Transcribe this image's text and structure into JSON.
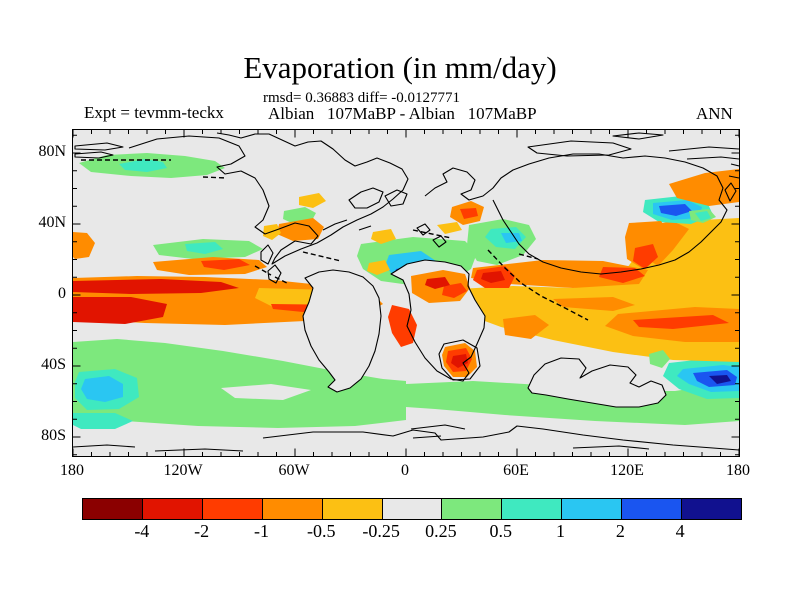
{
  "header": {
    "title": "Evaporation (in mm/day)",
    "stats_line": "rmsd= 0.36883 diff= -0.0127771",
    "expt_label": "Expt = tevmm-teckx",
    "run_label": "Albian   107MaBP - Albian   107MaBP",
    "season_label": "ANN"
  },
  "chart_data": {
    "type": "heatmap",
    "title": "Evaporation (in mm/day)",
    "subtitle": "rmsd= 0.36883 diff= -0.0127771",
    "rmsd": 0.36883,
    "diff": -0.0127771,
    "experiment": "tevmm-teckx",
    "comparison": "Albian  107MaBP - Albian  107MaBP",
    "season": "ANN",
    "projection": "equirectangular",
    "lon_range": [
      -180,
      180
    ],
    "lat_range": [
      -90,
      90
    ],
    "lon_tick_labels": [
      "180",
      "120W",
      "60W",
      "0",
      "60E",
      "120E",
      "180"
    ],
    "lon_tick_x": [
      0,
      111,
      222,
      333,
      444,
      555,
      666
    ],
    "lat_tick_labels": [
      "80N",
      "40N",
      "0",
      "40S",
      "80S"
    ],
    "lat_tick_y": [
      23,
      94,
      165,
      236,
      307
    ],
    "colorbar": {
      "units": "mm/day",
      "levels": [
        -4,
        -2,
        -1,
        -0.5,
        -0.25,
        0.25,
        0.5,
        1,
        2,
        4
      ],
      "labels": [
        "-4",
        "-2",
        "-1",
        "-0.5",
        "-0.25",
        "0.25",
        "0.5",
        "1",
        "2",
        "4"
      ],
      "colors": [
        "#8b0000",
        "#e11400",
        "#ff3c00",
        "#ff8c00",
        "#fcc013",
        "#e8e8e8",
        "#7de87d",
        "#3fe9c0",
        "#2ac6f2",
        "#1a55f0",
        "#11118f"
      ]
    },
    "map": {
      "background": "#e8e8e8",
      "palette": {
        "bg": "#e8e8e8",
        "g": "#7de87d",
        "t": "#3fe9c0",
        "c": "#2ac6f2",
        "b": "#1a55f0",
        "n": "#11118f",
        "a": "#fcc013",
        "o": "#ff8c00",
        "r": "#ff3c00",
        "R": "#e11400"
      },
      "regions": [
        [
          "g",
          "M6,33 L34,25 L74,23 L112,26 L142,31 L152,38 L134,45 L98,48 L58,46 L18,42 Z"
        ],
        [
          "t",
          "M46,34 L72,29 L90,32 L94,38 L74,42 L52,40 Z"
        ],
        [
          "g",
          "M0,212 L44,209 L92,213 L150,221 L210,231 L262,241 L310,249 L333,251 L333,290 L282,296 L205,298 L125,296 L52,291 L0,287 Z"
        ],
        [
          "bg",
          "M148,258 L198,254 L238,260 L210,270 L162,268 Z"
        ],
        [
          "g",
          "M333,254 L400,251 L468,255 L540,261 L602,261 L642,255 L666,249 L666,291 L612,295 L522,291 L432,285 L362,279 L333,277 Z"
        ],
        [
          "t",
          "M596,233 L640,228 L666,228 L666,268 L634,269 L606,259 L590,246 Z"
        ],
        [
          "c",
          "M610,239 L650,235 L666,237 L666,261 L638,262 L616,254 L604,246 Z"
        ],
        [
          "b",
          "M620,243 L654,240 L664,247 L662,255 L636,257 L624,251 Z"
        ],
        [
          "n",
          "M636,246 L654,245 L658,251 L644,254 Z"
        ],
        [
          "t",
          "M6,242 L42,239 L64,248 L66,267 L46,279 L14,280 L2,268 L2,252 Z"
        ],
        [
          "c",
          "M12,249 L36,246 L50,254 L50,267 L32,272 L14,269 L8,259 Z"
        ],
        [
          "t",
          "M0,283 L42,283 L60,291 L42,299 L8,299 L0,295 Z"
        ],
        [
          "g",
          "M80,115 L130,109 L176,111 L190,119 L172,127 L120,129 L86,125 Z"
        ],
        [
          "t",
          "M112,114 L142,112 L150,119 L132,124 L114,121 Z"
        ],
        [
          "o",
          "M80,132 L140,127 L186,130 L194,137 L172,144 L116,145 L84,140 Z"
        ],
        [
          "r",
          "M128,131 L166,129 L177,135 L151,140 L131,137 Z"
        ],
        [
          "o",
          "M0,148 L64,146 L132,147 L200,150 L258,156 L300,164 L310,174 L292,184 L232,191 L152,195 L72,193 L0,189 Z"
        ],
        [
          "R",
          "M0,151 L88,149 L148,152 L166,158 L128,163 L58,164 L0,162 Z"
        ],
        [
          "R",
          "M0,167 L58,167 L94,174 L90,187 L52,194 L0,192 Z"
        ],
        [
          "a",
          "M186,158 L256,160 L298,168 L294,179 L248,183 L200,177 L182,168 Z"
        ],
        [
          "r",
          "M198,174 L278,175 L284,180 L230,182 L200,179 Z"
        ],
        [
          "a",
          "M366,160 L440,156 L500,158 L545,150 L560,130 L572,108 L590,95 L630,90 L666,88 L666,232 L600,230 L540,222 L480,210 L428,197 L390,183 L364,173 Z"
        ],
        [
          "o",
          "M545,184 L622,177 L666,179 L666,212 L612,212 L560,206 L532,196 Z"
        ],
        [
          "r",
          "M560,190 L640,185 L656,193 L600,199 L566,197 Z"
        ],
        [
          "o",
          "M574,96 L600,91 L616,99 L600,120 L585,136 L570,126 L568,108 Z"
        ],
        [
          "o",
          "M430,189 L462,185 L476,195 L458,209 L432,205 Z"
        ],
        [
          "o",
          "M480,169 L540,167 L562,175 L540,181 L490,177 Z"
        ],
        [
          "o",
          "M400,138 L470,130 L530,131 L575,140 L566,154 L500,158 L436,154 L398,148 Z"
        ],
        [
          "r",
          "M404,140 L432,136 L442,146 L436,158 L412,158 L400,150 Z"
        ],
        [
          "R",
          "M410,143 L428,141 L432,150 L418,153 L408,149 Z"
        ],
        [
          "r",
          "M530,137 L562,138 L572,146 L550,153 L526,147 Z"
        ],
        [
          "g",
          "M288,114 L340,107 L392,111 L404,123 L398,139 L380,151 L344,156 L308,151 L290,139 L284,126 Z"
        ],
        [
          "c",
          "M316,125 L348,121 L363,131 L358,145 L338,152 L321,146 L312,136 Z"
        ],
        [
          "b",
          "M323,139 L338,136 L343,145 L330,150 L321,146 Z"
        ],
        [
          "a",
          "M296,133 L312,130 L317,140 L304,145 L294,141 Z"
        ],
        [
          "a",
          "M300,102 L318,99 L323,109 L308,114 L298,109 Z"
        ],
        [
          "a",
          "M364,95 L384,92 L389,100 L372,104 Z"
        ],
        [
          "g",
          "M396,95 L430,89 L456,95 L463,109 L450,125 L424,135 L404,131 L394,115 Z"
        ],
        [
          "t",
          "M418,99 L443,97 L453,107 L442,119 L423,117 L412,107 Z"
        ],
        [
          "c",
          "M428,103 L446,103 L449,111 L433,113 Z"
        ],
        [
          "t",
          "M572,70 L608,66 L634,72 L640,85 L618,94 L586,92 L570,82 Z"
        ],
        [
          "c",
          "M580,73 L614,70 L629,77 L626,88 L599,90 L580,84 Z"
        ],
        [
          "b",
          "M586,76 L612,74 L619,81 L603,86 L588,83 Z"
        ],
        [
          "o",
          "M556,93 L588,91 L596,103 L586,125 L570,139 L554,129 L552,107 Z"
        ],
        [
          "r",
          "M562,118 L580,114 L585,127 L572,139 L560,131 Z"
        ],
        [
          "o",
          "M596,54 L632,43 L666,39 L666,72 L636,76 L604,68 Z"
        ],
        [
          "g",
          "M616,81 L636,79 L643,87 L630,93 L618,90 Z"
        ],
        [
          "t",
          "M622,83 L634,81 L638,88 L628,91 Z"
        ],
        [
          "g",
          "M211,81 L232,77 L243,83 L238,92 L221,94 L210,89 Z"
        ],
        [
          "t",
          "M225,95 L240,92 L246,100 L234,105 L225,101 Z"
        ],
        [
          "o",
          "M206,94 L240,88 L251,97 L245,109 L220,111 L204,104 Z"
        ],
        [
          "a",
          "M191,96 L204,94 L208,103 L199,110 L190,106 Z"
        ],
        [
          "o",
          "M0,102 L14,103 L22,113 L16,127 L2,129 L0,127 Z"
        ],
        [
          "a",
          "M226,67 L246,63 L253,71 L240,78 L226,75 Z"
        ],
        [
          "o",
          "M379,77 L398,71 L411,77 L407,91 L390,95 L377,87 Z"
        ],
        [
          "r",
          "M387,79 L403,78 L405,86 L391,89 Z"
        ],
        [
          "bg",
          "M232,148 L240,158 L236,172 L230,186 L232,200 L238,216 L246,230 L256,242 L262,250 L255,257 L264,262 L277,258 L288,249 L296,236 L302,221 L306,204 L308,186 L306,168 L300,156 L290,147 L276,142 L260,140 L246,142 Z"
        ],
        [
          "bg",
          "M318,144 L330,150 L336,164 L338,180 L334,196 L342,212 L352,228 L364,241 L378,249 L390,251 L396,243 L390,233 L398,227 L404,214 L411,198 L412,186 L402,170 L395,156 L396,144 L388,136 L372,132 L352,130 L334,134 Z"
        ],
        [
          "bg",
          "M455,258 L461,245 L472,234 L488,228 L506,229 L513,238 L507,248 L519,241 L537,235 L555,237 L563,245 L557,253 L566,257 L578,251 L589,255 L593,265 L585,273 L566,277 L543,277 L519,273 L495,269 L473,265 L459,263 Z"
        ],
        [
          "o",
          "M338,146 L370,140 L392,144 L397,158 L387,171 L356,173 L339,163 Z"
        ],
        [
          "r",
          "M371,156 L388,153 L394,161 L381,168 L369,165 Z"
        ],
        [
          "R",
          "M354,149 L372,147 L377,155 L362,159 L352,155 Z"
        ],
        [
          "r",
          "M319,175 L336,179 L344,195 L340,213 L328,217 L319,203 L315,187 Z"
        ],
        [
          "g",
          "M576,224 L590,220 L597,229 L589,238 L577,234 Z"
        ],
        [
          "bg",
          "M371,214 L390,210 L404,218 L407,236 L397,249 L380,250 L369,238 L366,224 Z"
        ],
        [
          "o",
          "M372,217 L392,213 L402,221 L404,237 L394,247 L380,247 L371,236 L369,225 Z"
        ],
        [
          "r",
          "M375,221 L393,218 L399,229 L393,241 L380,242 L373,232 Z"
        ],
        [
          "R",
          "M380,226 L393,224 L395,233 L385,238 L378,233 Z"
        ]
      ],
      "coastlines": [
        "M56,18 L84,9 L116,6 L146,8 L166,16 L172,26 L158,34 L144,37 L152,44 L168,41 L182,48 L190,60 L196,76 L190,90 L182,97 L192,104 L206,99 L222,93 L236,96 L245,106 L238,114 L222,111 L208,120 L202,128 L199,134 L212,126 L228,119 L244,113 L258,105 L270,97 L284,90 L298,84 L310,77 L320,69 L330,60 L335,49 L329,39 L317,33 L304,28 L294,32 L282,36 L272,30 L260,19 L248,11 L235,12 L222,16 L209,10 L196,4 L182,4 L168,8 L156,5 L144,3",
        "M2,16 L34,13 L50,17 L32,20 L2,19 Z",
        "M2,24 L28,22 L40,25 L26,28 L2,27 Z",
        "M276,70 L288,62 L300,58 L310,62 L306,72 L294,78 L282,78 Z",
        "M312,66 L324,60 L334,64 L330,74 L318,76 Z",
        "M352,66 L362,58 L374,52 L370,44 L380,38 L394,42 L402,50 L398,60 L388,64 L396,70 L410,66 L420,58 L428,48 L440,40 L456,34 L476,28 L500,24 L526,24 L550,28 L572,26 L592,28 L612,32 L630,38 L644,46 L650,58 L646,70 L654,80 L648,92 L638,102 L628,112 L616,122 L602,130 L586,135 L568,139 L548,142 L528,144 L508,142 L488,138 L470,132 L456,124 L446,114 L438,102 L430,90 L424,78 L420,70",
        "M455,17 L498,11 L540,13 L558,19 L536,25 L494,26 L464,23 Z",
        "M540,6 L566,3 L590,5 L566,9 Z",
        "M596,21 L636,17 L666,19",
        "M614,29 L648,27 L666,29",
        "M232,148 L240,158 L236,172 L230,186 L232,200 L238,216 L246,230 L256,242 L262,250 L255,257 L264,262 L277,258 L288,249 L296,236 L302,221 L306,204 L308,186 L306,168 L300,156 L290,147 L276,142 L260,140 L246,142 Z",
        "M318,144 L330,150 L336,164 L338,180 L334,196 L342,212 L352,228 L364,241 L378,249 L390,251 L396,243 L390,233 L398,227 L404,214 L411,198 L412,186 L402,170 L395,156 L396,144 L388,136 L372,132 L352,130 L334,134 Z",
        "M188,122 L195,115 L200,123 L195,134 L188,130 Z",
        "M195,141 L202,135 L208,143 L203,153 L196,149 Z",
        "M455,258 L461,245 L472,234 L488,228 L506,229 L513,238 L507,248 L519,241 L537,235 L555,237 L563,245 L557,253 L566,257 L578,251 L589,255 L593,265 L585,273 L566,277 L543,277 L519,273 L495,269 L473,265 L459,263 Z",
        "M371,214 L390,210 L404,218 L407,236 L397,249 L380,250 L369,238 L366,224 Z",
        "M652,60 L658,53 L663,61 L657,71 Z",
        "M658,34 L666,36",
        "M656,46 L666,48",
        "M190,308 L240,302 L290,302 L320,306 L340,300 L362,303 L368,310 L410,307 L436,302 L444,296 L470,299 L510,305 L550,310 L600,315 L640,318 L666,320",
        "M0,317 L34,315 L62,317",
        "M82,321 L132,319 L170,321",
        "M338,299 L372,295 L392,299",
        "M340,308 L368,306",
        "M500,318 L546,316 L576,319",
        "M250,100 L262,94 L274,90",
        "M286,100 L298,96",
        "M344,98 L352,94 L357,100 L350,105 Z",
        "M360,110 L368,106 L373,112 L366,117 Z"
      ],
      "dashed_contours": [
        "M8,30 L98,30",
        "M130,47 L154,48",
        "M182,136 L198,145",
        "M202,147 L214,153",
        "M415,120 L432,138 L448,153 L468,166 L492,178 L515,190",
        "M340,100 L378,108",
        "M230,122 L268,131",
        "M446,124 L465,129"
      ]
    }
  }
}
